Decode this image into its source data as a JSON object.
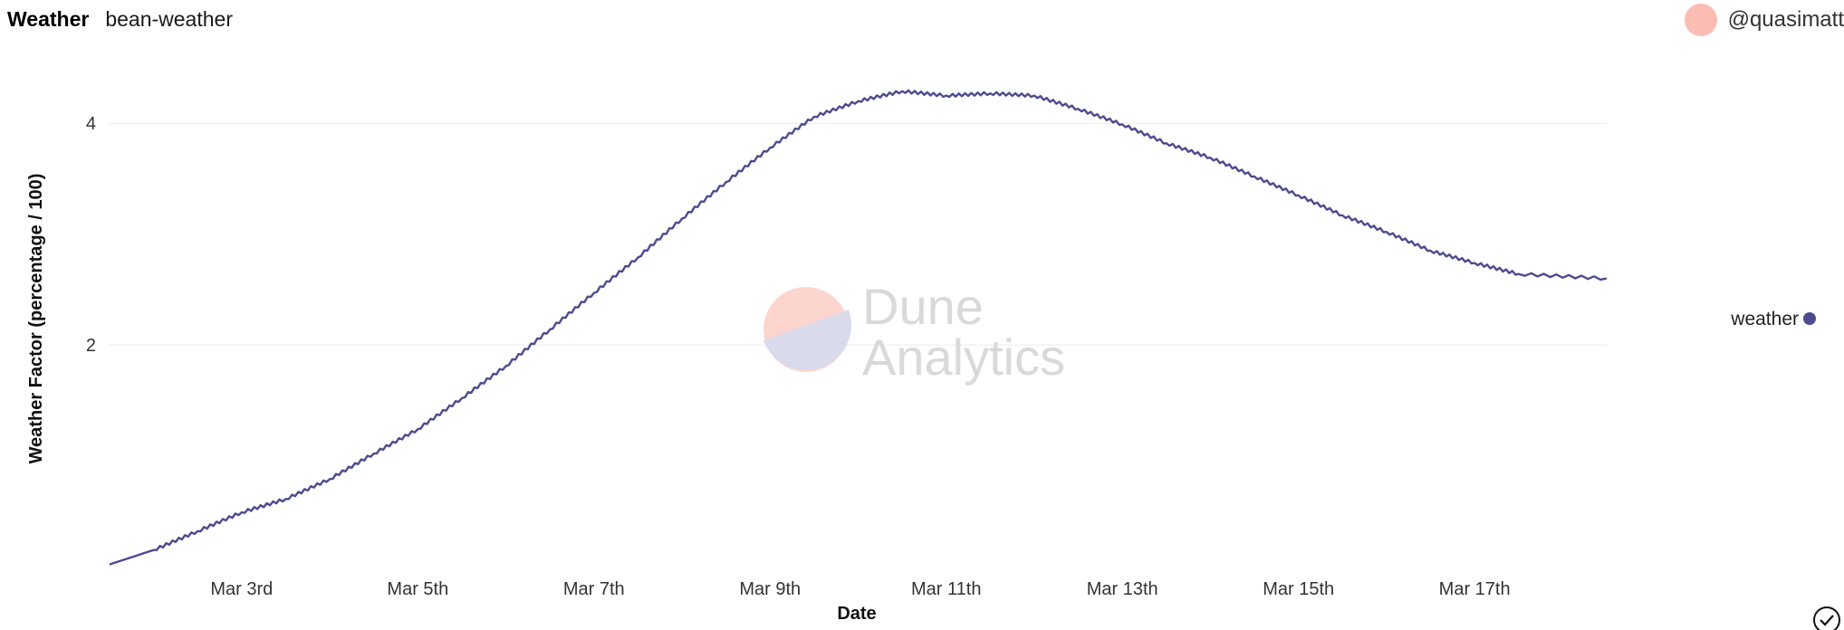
{
  "header": {
    "viz_title": "Weather",
    "query_name": "bean-weather",
    "author": "@quasimatt"
  },
  "watermark": {
    "line1": "Dune",
    "line2": "Analytics"
  },
  "colors": {
    "series": "#4d4b8f",
    "avatar": "#fbbcb4",
    "grid": "#ececec"
  },
  "icons": {
    "avatar": "avatar-icon",
    "status": "check-circle-icon"
  },
  "chart_data": {
    "type": "line",
    "xlabel": "Date",
    "ylabel": "Weather Factor (percentage / 100)",
    "xlim": [
      "2022-03-01T12:00",
      "2022-03-18T12:00"
    ],
    "ylim": [
      0,
      4.5
    ],
    "x_tick_labels": [
      "Mar 3rd",
      "Mar 5th",
      "Mar 7th",
      "Mar 9th",
      "Mar 11th",
      "Mar 13th",
      "Mar 15th",
      "Mar 17th"
    ],
    "x_tick_dates": [
      "2022-03-03",
      "2022-03-05",
      "2022-03-07",
      "2022-03-09",
      "2022-03-11",
      "2022-03-13",
      "2022-03-15",
      "2022-03-17"
    ],
    "y_ticks": [
      2,
      4
    ],
    "y_tick_labels": [
      "2",
      "4"
    ],
    "grid": true,
    "legend_position": "right",
    "series": [
      {
        "name": "weather",
        "color": "#4d4b8f",
        "points": [
          {
            "x": "2022-03-01T12:00",
            "y": 0.02
          },
          {
            "x": "2022-03-02T00:00",
            "y": 0.15
          },
          {
            "x": "2022-03-02T12:00",
            "y": 0.32
          },
          {
            "x": "2022-03-03T00:00",
            "y": 0.49
          },
          {
            "x": "2022-03-03T12:00",
            "y": 0.61
          },
          {
            "x": "2022-03-04T00:00",
            "y": 0.79
          },
          {
            "x": "2022-03-04T12:00",
            "y": 1.02
          },
          {
            "x": "2022-03-05T00:00",
            "y": 1.24
          },
          {
            "x": "2022-03-05T12:00",
            "y": 1.52
          },
          {
            "x": "2022-03-06T00:00",
            "y": 1.81
          },
          {
            "x": "2022-03-06T12:00",
            "y": 2.14
          },
          {
            "x": "2022-03-07T00:00",
            "y": 2.47
          },
          {
            "x": "2022-03-07T12:00",
            "y": 2.79
          },
          {
            "x": "2022-03-08T00:00",
            "y": 3.14
          },
          {
            "x": "2022-03-08T12:00",
            "y": 3.47
          },
          {
            "x": "2022-03-09T00:00",
            "y": 3.78
          },
          {
            "x": "2022-03-09T12:00",
            "y": 4.06
          },
          {
            "x": "2022-03-10T00:00",
            "y": 4.2
          },
          {
            "x": "2022-03-10T12:00",
            "y": 4.29
          },
          {
            "x": "2022-03-11T00:00",
            "y": 4.25
          },
          {
            "x": "2022-03-11T12:00",
            "y": 4.27
          },
          {
            "x": "2022-03-12T00:00",
            "y": 4.25
          },
          {
            "x": "2022-03-12T12:00",
            "y": 4.13
          },
          {
            "x": "2022-03-13T00:00",
            "y": 3.99
          },
          {
            "x": "2022-03-13T12:00",
            "y": 3.82
          },
          {
            "x": "2022-03-14T00:00",
            "y": 3.69
          },
          {
            "x": "2022-03-14T12:00",
            "y": 3.52
          },
          {
            "x": "2022-03-15T00:00",
            "y": 3.35
          },
          {
            "x": "2022-03-15T12:00",
            "y": 3.17
          },
          {
            "x": "2022-03-16T00:00",
            "y": 3.02
          },
          {
            "x": "2022-03-16T12:00",
            "y": 2.85
          },
          {
            "x": "2022-03-17T00:00",
            "y": 2.74
          },
          {
            "x": "2022-03-17T12:00",
            "y": 2.64
          },
          {
            "x": "2022-03-18T12:00",
            "y": 2.6
          }
        ]
      }
    ]
  }
}
